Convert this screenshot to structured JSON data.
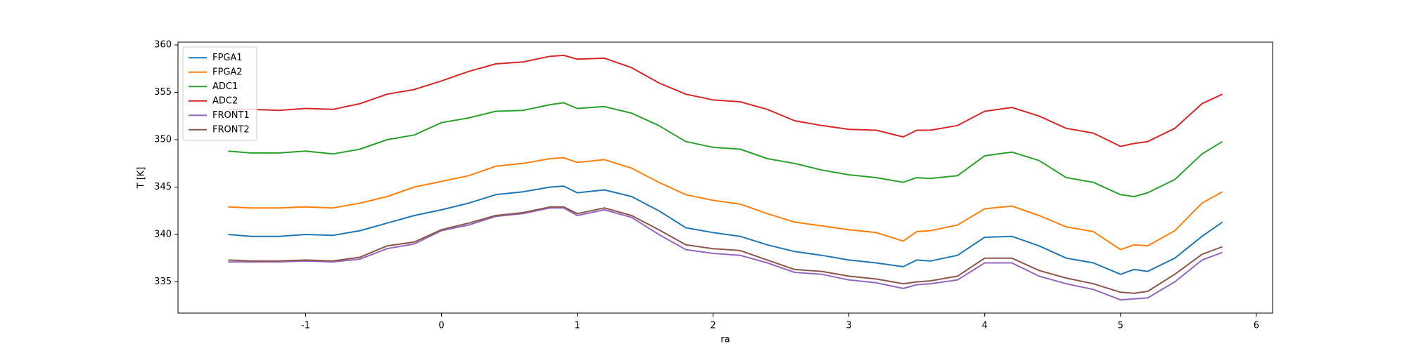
{
  "chart_data": {
    "type": "line",
    "xlabel": "ra",
    "ylabel": "T [K]",
    "x": [
      -1.57,
      -1.4,
      -1.2,
      -1.0,
      -0.8,
      -0.6,
      -0.4,
      -0.2,
      0,
      0.2,
      0.4,
      0.6,
      0.8,
      0.9,
      1.0,
      1.2,
      1.4,
      1.6,
      1.8,
      2.0,
      2.2,
      2.4,
      2.6,
      2.8,
      3.0,
      3.2,
      3.4,
      3.5,
      3.6,
      3.8,
      4.0,
      4.2,
      4.4,
      4.6,
      4.8,
      5.0,
      5.1,
      5.2,
      5.4,
      5.6,
      5.75
    ],
    "series": [
      {
        "name": "FPGA1",
        "color": "#1f77b4",
        "values": [
          340.0,
          339.8,
          339.8,
          340.0,
          339.9,
          340.4,
          341.2,
          342.0,
          342.6,
          343.3,
          344.2,
          344.5,
          345.0,
          345.1,
          344.4,
          344.7,
          344.0,
          342.5,
          340.7,
          340.2,
          339.8,
          338.9,
          338.2,
          337.8,
          337.3,
          337.0,
          336.6,
          337.3,
          337.2,
          337.8,
          339.7,
          339.8,
          338.8,
          337.5,
          337.0,
          335.8,
          336.3,
          336.1,
          337.5,
          339.8,
          341.3
        ]
      },
      {
        "name": "FPGA2",
        "color": "#ff7f0e",
        "values": [
          342.9,
          342.8,
          342.8,
          342.9,
          342.8,
          343.3,
          344.0,
          345.0,
          345.6,
          346.2,
          347.2,
          347.5,
          348.0,
          348.1,
          347.6,
          347.9,
          347.0,
          345.5,
          344.2,
          343.6,
          343.2,
          342.2,
          341.3,
          340.9,
          340.5,
          340.2,
          339.3,
          340.3,
          340.4,
          341.0,
          342.7,
          343.0,
          342.0,
          340.8,
          340.3,
          338.4,
          338.9,
          338.8,
          340.4,
          343.3,
          344.5
        ]
      },
      {
        "name": "ADC1",
        "color": "#2ca02c",
        "values": [
          348.8,
          348.6,
          348.6,
          348.8,
          348.5,
          349.0,
          350.0,
          350.5,
          351.8,
          352.3,
          353.0,
          353.1,
          353.7,
          353.9,
          353.3,
          353.5,
          352.8,
          351.5,
          349.8,
          349.2,
          349.0,
          348.0,
          347.5,
          346.8,
          346.3,
          346.0,
          345.5,
          346.0,
          345.9,
          346.2,
          348.3,
          348.7,
          347.8,
          346.0,
          345.5,
          344.2,
          344.0,
          344.4,
          345.8,
          348.5,
          349.8
        ]
      },
      {
        "name": "ADC2",
        "color": "#d62728",
        "values": [
          353.2,
          353.2,
          353.1,
          353.3,
          353.2,
          353.8,
          354.8,
          355.3,
          356.2,
          357.2,
          358.0,
          358.2,
          358.8,
          358.9,
          358.5,
          358.6,
          357.6,
          356.0,
          354.8,
          354.2,
          354.0,
          353.2,
          352.0,
          351.5,
          351.1,
          351.0,
          350.3,
          351.0,
          351.0,
          351.5,
          353.0,
          353.4,
          352.5,
          351.2,
          350.7,
          349.3,
          349.6,
          349.8,
          351.2,
          353.8,
          354.8
        ]
      },
      {
        "name": "FRONT1",
        "color": "#9467bd",
        "values": [
          337.1,
          337.1,
          337.1,
          337.2,
          337.1,
          337.4,
          338.5,
          339.0,
          340.4,
          341.0,
          341.9,
          342.2,
          342.8,
          342.8,
          342.0,
          342.6,
          341.8,
          340.0,
          338.4,
          338.0,
          337.8,
          337.0,
          336.0,
          335.8,
          335.2,
          334.9,
          334.3,
          334.7,
          334.8,
          335.2,
          337.0,
          337.0,
          335.6,
          334.8,
          334.2,
          333.1,
          333.2,
          333.3,
          335.0,
          337.3,
          338.1
        ]
      },
      {
        "name": "FRONT2",
        "color": "#8c564b",
        "values": [
          337.3,
          337.2,
          337.2,
          337.3,
          337.2,
          337.6,
          338.8,
          339.2,
          340.5,
          341.2,
          342.0,
          342.3,
          342.9,
          342.9,
          342.2,
          342.8,
          342.0,
          340.5,
          338.9,
          338.5,
          338.3,
          337.3,
          336.3,
          336.1,
          335.6,
          335.3,
          334.8,
          335.0,
          335.1,
          335.6,
          337.5,
          337.5,
          336.2,
          335.4,
          334.8,
          333.9,
          333.8,
          334.0,
          335.8,
          337.9,
          338.7
        ]
      }
    ],
    "xlim": [
      -1.94,
      6.12
    ],
    "xticks": [
      -1,
      0,
      1,
      2,
      3,
      4,
      5,
      6
    ],
    "ylim": [
      331.7,
      360.3
    ],
    "yticks": [
      335,
      340,
      345,
      350,
      355,
      360
    ],
    "legend": "upper left"
  }
}
